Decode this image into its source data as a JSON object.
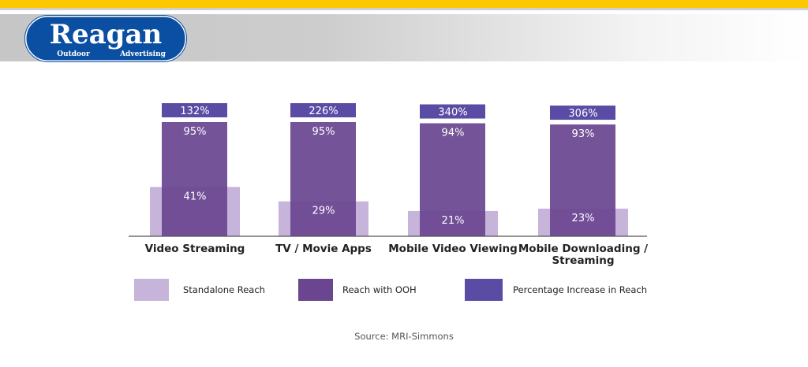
{
  "brand": {
    "logo_text": "Reagan",
    "logo_subtext_left": "Outdoor",
    "logo_subtext_right": "Advertising"
  },
  "chart_data": {
    "type": "bar",
    "categories": [
      "Video Streaming",
      "TV / Movie Apps",
      "Mobile Video Viewing",
      "Mobile Downloading / Streaming"
    ],
    "series": [
      {
        "name": "Standalone Reach",
        "values": [
          41,
          29,
          21,
          23
        ],
        "color": "#c6b4da"
      },
      {
        "name": "Reach with OOH",
        "values": [
          95,
          95,
          94,
          93
        ],
        "color": "#6b4690"
      },
      {
        "name": "Percentage Increase in Reach",
        "values": [
          132,
          226,
          340,
          306
        ],
        "color": "#5a4ca4"
      }
    ],
    "ylim": [
      0,
      100
    ],
    "grid": false,
    "legend": "bottom",
    "source": "Source: MRI-Simmons"
  }
}
